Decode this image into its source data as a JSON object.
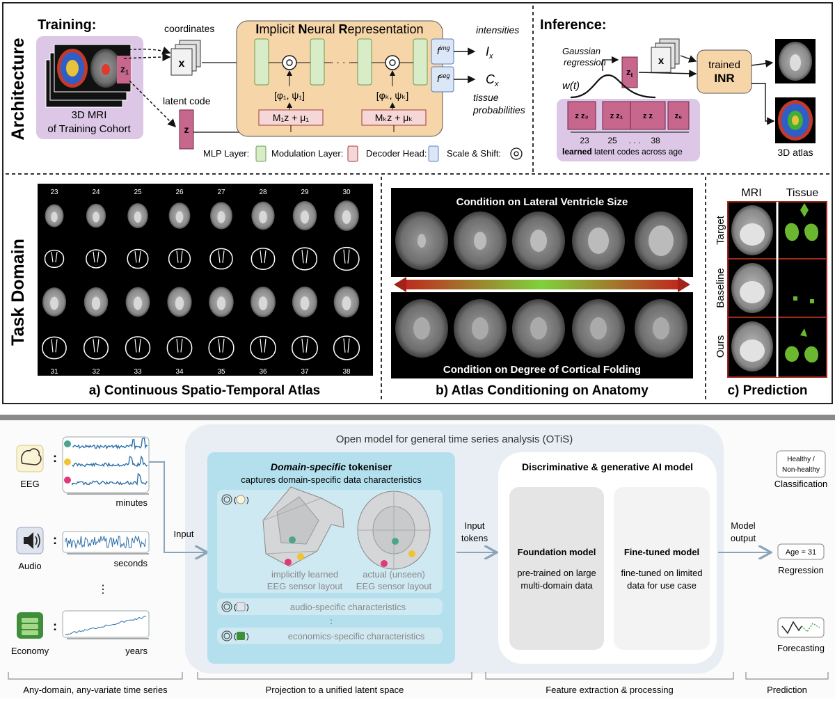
{
  "top": {
    "architecture_label": "Architecture",
    "task_domain_label": "Task Domain",
    "training": {
      "title": "Training:",
      "cohort_line1": "3D MRI",
      "cohort_line2": "of Training Cohort",
      "z1_label": "z",
      "z1_sub": "1",
      "coordinates": "coordinates",
      "x_label": "x",
      "latent_code": "latent code",
      "z_label": "z"
    },
    "inr": {
      "title_parts": [
        "I",
        "mplicit ",
        "N",
        "eural ",
        "R",
        "epresentation"
      ],
      "dots": "· · · ·",
      "mod1": "[φ₁, ψ₁]",
      "modk": "[φₖ, ψₖ]",
      "dec1": "M₁z + μ₁",
      "deck": "Mₖz + μₖ",
      "f_img": "f",
      "f_img_sup": "img",
      "f_seg": "f",
      "f_seg_sup": "seg",
      "ellipsis": "· · ·"
    },
    "outputs": {
      "intensities": "intensities",
      "ix": "I",
      "ix_sub": "x",
      "cx": "C",
      "cx_sub": "x",
      "tissue": "tissue",
      "probabilities": "probabilities"
    },
    "legend": {
      "mlp": "MLP Layer:",
      "modulation": "Modulation Layer:",
      "decoder": "Decoder Head:",
      "scale": "Scale & Shift:"
    },
    "inference": {
      "title": "Inference:",
      "gaussian1": "Gaussian",
      "gaussian2": "regression",
      "wt": "w(t)",
      "zt": "z",
      "zt_sub": "t",
      "x_label": "x",
      "trained1": "trained",
      "trained2": "INR",
      "codes": [
        "z z₃",
        "z z₁",
        "z z",
        "z₆"
      ],
      "age_23": "23",
      "age_25": "25",
      "age_dots": ". . .",
      "age_38": "38",
      "learned_bold": "learned",
      "learned_rest": " latent codes across age",
      "atlas": "3D atlas"
    },
    "panel_a": {
      "title": "a) Continuous Spatio-Temporal Atlas",
      "ages_top": [
        "23",
        "24",
        "25",
        "26",
        "27",
        "28",
        "29",
        "30"
      ],
      "ages_bottom": [
        "31",
        "32",
        "33",
        "34",
        "35",
        "36",
        "37",
        "38"
      ]
    },
    "panel_b": {
      "title": "b) Atlas Conditioning on Anatomy",
      "cond_top": "Condition on Lateral Ventricle Size",
      "cond_bottom": "Condition on Degree of Cortical Folding"
    },
    "panel_c": {
      "title": "c) Prediction",
      "col_mri": "MRI",
      "col_tissue": "Tissue",
      "rows": [
        "Target",
        "Baseline",
        "Ours"
      ]
    }
  },
  "bottom": {
    "title": "Open model for general time series analysis (OTiS)",
    "domains": [
      {
        "name": "EEG",
        "unit": "minutes"
      },
      {
        "name": "Audio",
        "unit": "seconds"
      },
      {
        "name": "Economy",
        "unit": "years"
      }
    ],
    "colon": ":",
    "vdots": "⋮",
    "input_label": "Input",
    "tokeniser": {
      "title_italic": "Domain-specific",
      "title_rest": " tokeniser",
      "subtitle": "captures domain-specific data characteristics",
      "learned1": "implicitly learned",
      "learned2": "EEG sensor layout",
      "actual1": "actual (unseen)",
      "actual2": "EEG sensor layout",
      "audio_char": "audio-specific characteristics",
      "colon_mid": ":",
      "econ_char": "economics-specific characteristics"
    },
    "input_tokens1": "Input",
    "input_tokens2": "tokens",
    "ai_model": {
      "title": "Discriminative & generative AI model",
      "foundation_title": "Foundation model",
      "foundation_desc1": "pre-trained on large",
      "foundation_desc2": "multi-domain data",
      "finetuned_title": "Fine-tuned model",
      "finetuned_desc1": "fine-tuned on limited",
      "finetuned_desc2": "data for use case"
    },
    "model_output1": "Model",
    "model_output2": "output",
    "predictions": {
      "class_box1": "Healthy /",
      "class_box2": "Non-healthy",
      "classification": "Classification",
      "age_box": "Age = 31",
      "regression": "Regression",
      "forecasting": "Forecasting"
    },
    "footer": [
      "Any-domain, any-variate time series",
      "Projection to a unified latent space",
      "Feature extraction & processing",
      "Prediction"
    ],
    "colors": {
      "tokeniser_bg": "#b4e0ee",
      "eeg_teal": "#4aa58c",
      "eeg_yellow": "#f0c430",
      "eeg_pink": "#e0387a",
      "signal_blue": "#2d6fa8"
    }
  }
}
